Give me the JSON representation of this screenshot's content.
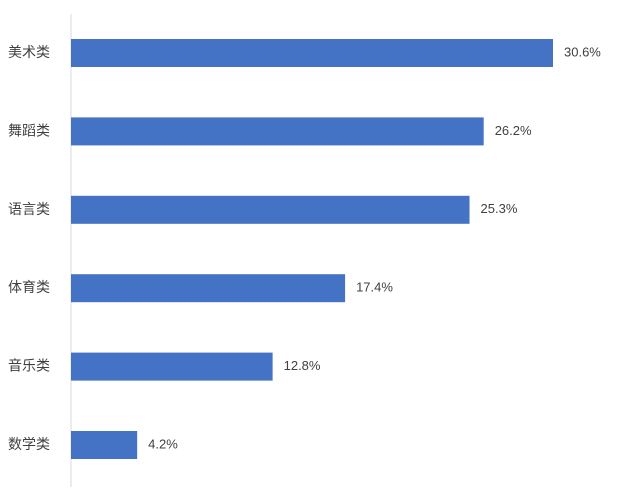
{
  "chart_data": {
    "type": "bar",
    "orientation": "horizontal",
    "categories": [
      "美术类",
      "舞蹈类",
      "语言类",
      "体育类",
      "音乐类",
      "数学类"
    ],
    "values": [
      30.6,
      26.2,
      25.3,
      17.4,
      12.8,
      4.2
    ],
    "value_labels": [
      "30.6%",
      "26.2%",
      "25.3%",
      "17.4%",
      "12.8%",
      "4.2%"
    ],
    "unit": "%",
    "xlim": [
      0,
      30.6
    ],
    "grid": false,
    "legend": "none",
    "colors": {
      "bar": "#4472C4",
      "axis": "#d9d9d9",
      "text": "#404040"
    }
  }
}
